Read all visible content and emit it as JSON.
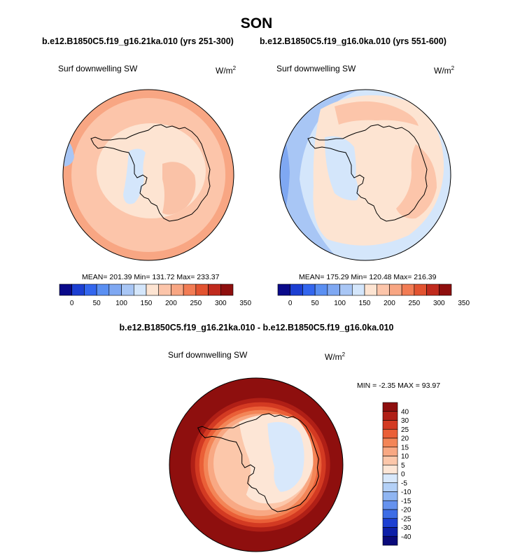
{
  "figure": {
    "season": "SON",
    "run_a_title": "b.e12.B1850C5.f19_g16.21ka.010 (yrs 251-300)",
    "run_b_title": "b.e12.B1850C5.f19_g16.0ka.010 (yrs 551-600)",
    "diff_title": "b.e12.B1850C5.f19_g16.21ka.010 - b.e12.B1850C5.f19_g16.0ka.010"
  },
  "panels": {
    "a": {
      "variable": "Surf downwelling SW",
      "units": "W/m",
      "units_exp": "2",
      "stats": "MEAN= 201.39  Min= 131.72  Max= 233.37"
    },
    "b": {
      "variable": "Surf downwelling SW",
      "units": "W/m",
      "units_exp": "2",
      "stats": "MEAN= 175.29  Min= 120.48  Max= 216.39"
    },
    "diff": {
      "variable": "Surf downwelling SW",
      "units": "W/m",
      "units_exp": "2",
      "stats": "MIN =  -2.35 MAX =  93.97"
    }
  },
  "chart_data": [
    {
      "type": "heatmap",
      "projection": "south-polar stereographic",
      "title": "b.e12.B1850C5.f19_g16.21ka.010 (yrs 251-300)",
      "variable": "Surf downwelling SW",
      "units": "W/m2",
      "mean": 201.39,
      "min": 131.72,
      "max": 233.37,
      "colorbar": {
        "tick_labels": [
          "0",
          "50",
          "100",
          "150",
          "200",
          "250",
          "300",
          "350"
        ],
        "colors": [
          "#0a0a8a",
          "#1c3fd2",
          "#3366ee",
          "#5a8ff2",
          "#7fa8f2",
          "#a8c6f5",
          "#d4e6fb",
          "#fde4d2",
          "#fcc5aa",
          "#f8a683",
          "#f27c54",
          "#e25330",
          "#c02a1d",
          "#8e0f0e"
        ]
      },
      "legend_placement": "bottom"
    },
    {
      "type": "heatmap",
      "projection": "south-polar stereographic",
      "title": "b.e12.B1850C5.f19_g16.0ka.010 (yrs 551-600)",
      "variable": "Surf downwelling SW",
      "units": "W/m2",
      "mean": 175.29,
      "min": 120.48,
      "max": 216.39,
      "colorbar": {
        "tick_labels": [
          "0",
          "50",
          "100",
          "150",
          "200",
          "250",
          "300",
          "350"
        ],
        "colors": [
          "#0a0a8a",
          "#1c3fd2",
          "#3366ee",
          "#5a8ff2",
          "#7fa8f2",
          "#a8c6f5",
          "#d4e6fb",
          "#fde4d2",
          "#fcc5aa",
          "#f8a683",
          "#f27c54",
          "#e25330",
          "#c02a1d",
          "#8e0f0e"
        ]
      },
      "legend_placement": "bottom"
    },
    {
      "type": "heatmap",
      "projection": "south-polar stereographic",
      "title": "b.e12.B1850C5.f19_g16.21ka.010 - b.e12.B1850C5.f19_g16.0ka.010",
      "variable": "Surf downwelling SW",
      "units": "W/m2",
      "min": -2.35,
      "max": 93.97,
      "colorbar": {
        "tick_labels": [
          "40",
          "30",
          "25",
          "20",
          "15",
          "10",
          "5",
          "0",
          "-5",
          "-10",
          "-15",
          "-20",
          "-25",
          "-30",
          "-40"
        ],
        "colors": [
          "#8e0f0e",
          "#b01f16",
          "#d33a22",
          "#ea5f37",
          "#f38557",
          "#f8a883",
          "#fcc7aa",
          "#fde6d6",
          "#d8e8fb",
          "#b3d0f7",
          "#8fb5f2",
          "#6592ee",
          "#3d6de6",
          "#1c3fd2",
          "#0d1fa8",
          "#0a0a7a"
        ]
      },
      "legend_placement": "right"
    }
  ]
}
